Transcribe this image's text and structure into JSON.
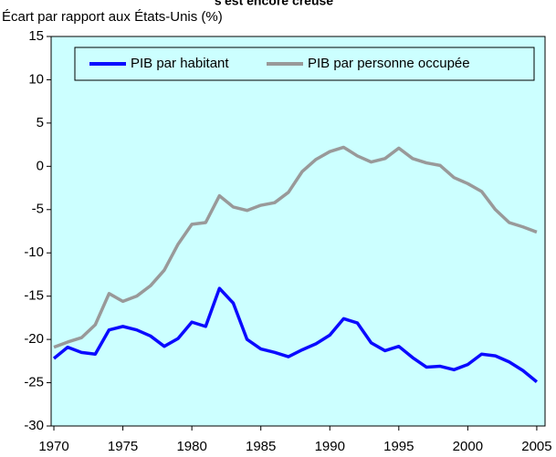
{
  "chart_data": {
    "type": "line",
    "title": "s'est encore creusé",
    "y_label": "Écart par rapport aux États-Unis (%)",
    "x": [
      1970,
      1971,
      1972,
      1973,
      1974,
      1975,
      1976,
      1977,
      1978,
      1979,
      1980,
      1981,
      1982,
      1983,
      1984,
      1985,
      1986,
      1987,
      1988,
      1989,
      1990,
      1991,
      1992,
      1993,
      1994,
      1995,
      1996,
      1997,
      1998,
      1999,
      2000,
      2001,
      2002,
      2003,
      2004,
      2005
    ],
    "series": [
      {
        "name": "PIB par habitant",
        "color": "#0a0aff",
        "values": [
          -22.2,
          -20.9,
          -21.5,
          -21.7,
          -18.9,
          -18.5,
          -18.9,
          -19.6,
          -20.8,
          -19.9,
          -18.0,
          -18.5,
          -14.1,
          -15.8,
          -20.0,
          -21.1,
          -21.5,
          -22.0,
          -21.2,
          -20.5,
          -19.5,
          -17.6,
          -18.1,
          -20.4,
          -21.3,
          -20.8,
          -22.1,
          -23.2,
          -23.1,
          -23.5,
          -22.9,
          -21.7,
          -21.9,
          -22.6,
          -23.6,
          -24.9
        ]
      },
      {
        "name": "PIB par personne occupée",
        "color": "#999999",
        "values": [
          -20.9,
          -20.3,
          -19.8,
          -18.3,
          -14.7,
          -15.6,
          -15.0,
          -13.8,
          -12.0,
          -9.0,
          -6.7,
          -6.5,
          -3.4,
          -4.7,
          -5.1,
          -4.5,
          -4.2,
          -3.0,
          -0.6,
          0.8,
          1.7,
          2.2,
          1.2,
          0.5,
          0.9,
          2.1,
          0.9,
          0.4,
          0.1,
          -1.3,
          -2.0,
          -2.9,
          -5.0,
          -6.5,
          -7.0,
          -7.6
        ]
      }
    ],
    "xlim": [
      1969.8,
      2005.6
    ],
    "xticks": [
      1970,
      1975,
      1980,
      1985,
      1990,
      1995,
      2000,
      2005
    ],
    "ylim": [
      -30,
      15
    ],
    "yticks": [
      -30,
      -25,
      -20,
      -15,
      -10,
      -5,
      0,
      5,
      10,
      15
    ],
    "grid": false,
    "legend": "top",
    "background": "#ccffff"
  }
}
